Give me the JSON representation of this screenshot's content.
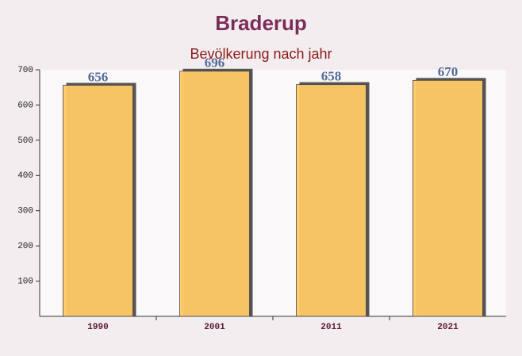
{
  "chart_data": {
    "type": "bar",
    "title": "Braderup",
    "subtitle": "Bevölkerung nach jahr",
    "categories": [
      "1990",
      "2001",
      "2011",
      "2021"
    ],
    "values": [
      656,
      696,
      658,
      670
    ],
    "color": "#ffc966",
    "ylim": [
      0,
      700
    ],
    "yticks": [
      100,
      200,
      300,
      400,
      500,
      600,
      700
    ]
  }
}
